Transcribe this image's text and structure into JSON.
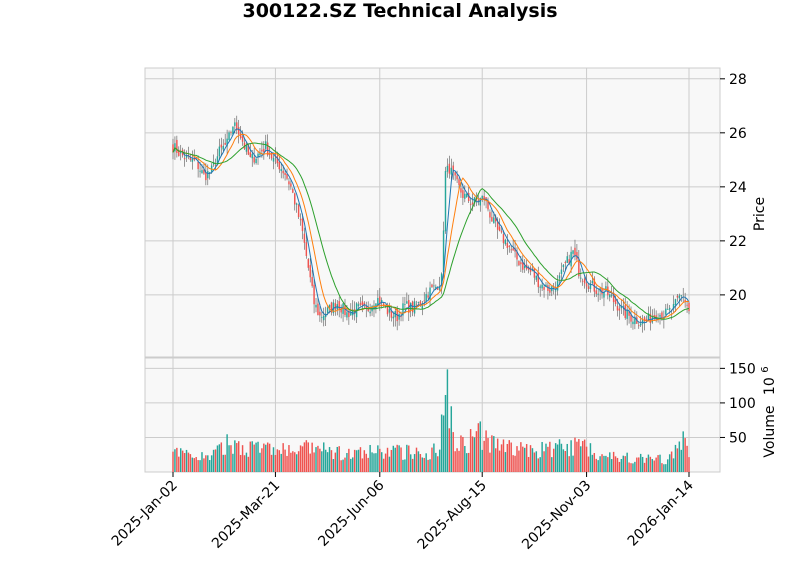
{
  "chart_data": {
    "type": "candlestick",
    "title": "300122.SZ Technical Analysis",
    "xlabel": "",
    "price_panel": {
      "ylabel": "Price",
      "ylim": [
        17.7,
        28.4
      ],
      "yticks": [
        20,
        22,
        24,
        26,
        28
      ],
      "grid": true
    },
    "volume_panel": {
      "ylabel": "Volume",
      "yexp": "10",
      "yexp_power": "6",
      "ylim": [
        0,
        165
      ],
      "yticks": [
        50,
        100,
        150
      ],
      "grid": true
    },
    "x_ticks": [
      "2025-Jan-02",
      "2025-Mar-21",
      "2025-Jun-06",
      "2025-Aug-15",
      "2025-Nov-03",
      "2026-Jan-14"
    ],
    "x_tick_index": [
      0,
      53,
      107,
      160,
      214,
      267
    ],
    "n_bars": 268,
    "colors": {
      "up": "#26a69a",
      "down": "#ef5350",
      "ma_short": "#1f77b4",
      "ma_mid": "#ff7f0e",
      "ma_long": "#2ca02c",
      "panel_bg": "#f8f8f8",
      "grid": "#cccccc"
    },
    "close_anchors": [
      [
        0,
        25.5
      ],
      [
        4,
        25.2
      ],
      [
        8,
        25.0
      ],
      [
        12,
        24.9
      ],
      [
        16,
        24.4
      ],
      [
        20,
        24.6
      ],
      [
        24,
        25.3
      ],
      [
        28,
        25.6
      ],
      [
        31,
        26.3
      ],
      [
        34,
        26.1
      ],
      [
        37,
        25.5
      ],
      [
        40,
        25.0
      ],
      [
        44,
        25.2
      ],
      [
        48,
        25.5
      ],
      [
        52,
        25.0
      ],
      [
        55,
        24.8
      ],
      [
        58,
        24.5
      ],
      [
        61,
        24.0
      ],
      [
        64,
        23.2
      ],
      [
        67,
        22.3
      ],
      [
        70,
        21.0
      ],
      [
        73,
        19.7
      ],
      [
        76,
        19.2
      ],
      [
        80,
        19.4
      ],
      [
        85,
        19.7
      ],
      [
        90,
        19.3
      ],
      [
        95,
        19.5
      ],
      [
        100,
        19.4
      ],
      [
        105,
        19.9
      ],
      [
        108,
        19.7
      ],
      [
        112,
        19.3
      ],
      [
        116,
        19.2
      ],
      [
        120,
        19.6
      ],
      [
        124,
        19.5
      ],
      [
        128,
        19.7
      ],
      [
        132,
        20.1
      ],
      [
        136,
        20.3
      ],
      [
        139,
        20.6
      ],
      [
        141,
        24.5
      ],
      [
        143,
        24.7
      ],
      [
        146,
        24.2
      ],
      [
        150,
        23.7
      ],
      [
        155,
        23.4
      ],
      [
        158,
        23.5
      ],
      [
        161,
        23.6
      ],
      [
        165,
        22.8
      ],
      [
        169,
        22.2
      ],
      [
        173,
        21.9
      ],
      [
        177,
        21.4
      ],
      [
        182,
        21.0
      ],
      [
        186,
        20.8
      ],
      [
        190,
        20.4
      ],
      [
        195,
        20.2
      ],
      [
        199,
        20.4
      ],
      [
        203,
        21.1
      ],
      [
        207,
        21.6
      ],
      [
        210,
        20.9
      ],
      [
        214,
        20.5
      ],
      [
        219,
        20.2
      ],
      [
        224,
        20.1
      ],
      [
        229,
        19.7
      ],
      [
        234,
        19.3
      ],
      [
        239,
        19.1
      ],
      [
        244,
        19.0
      ],
      [
        250,
        19.3
      ],
      [
        255,
        19.3
      ],
      [
        259,
        19.5
      ],
      [
        262,
        19.9
      ],
      [
        264,
        20.0
      ],
      [
        267,
        19.4
      ]
    ],
    "volume_anchors": [
      [
        0,
        26
      ],
      [
        20,
        22
      ],
      [
        28,
        40
      ],
      [
        60,
        30
      ],
      [
        72,
        34
      ],
      [
        90,
        25
      ],
      [
        110,
        30
      ],
      [
        130,
        28
      ],
      [
        138,
        32
      ],
      [
        141,
        155
      ],
      [
        142,
        130
      ],
      [
        144,
        80
      ],
      [
        146,
        50
      ],
      [
        150,
        40
      ],
      [
        158,
        55
      ],
      [
        165,
        40
      ],
      [
        175,
        35
      ],
      [
        185,
        30
      ],
      [
        200,
        35
      ],
      [
        214,
        38
      ],
      [
        220,
        25
      ],
      [
        240,
        20
      ],
      [
        255,
        18
      ],
      [
        260,
        28
      ],
      [
        264,
        45
      ],
      [
        267,
        35
      ]
    ]
  }
}
